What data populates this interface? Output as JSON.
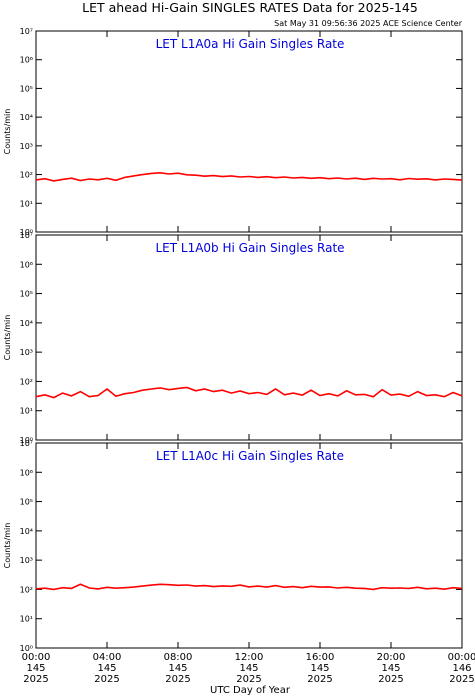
{
  "title": "LET ahead Hi-Gain SINGLES RATES Data for 2025-145",
  "timestamp": "Sat May 31 09:56:36 2025 ACE Science Center",
  "xlabel": "UTC Day of Year",
  "xlim": [
    0,
    24
  ],
  "xticks": [
    {
      "value": 0,
      "label": "00:00\n145\n2025"
    },
    {
      "value": 4,
      "label": "04:00\n145\n2025"
    },
    {
      "value": 8,
      "label": "08:00\n145\n2025"
    },
    {
      "value": 12,
      "label": "12:00\n145\n2025"
    },
    {
      "value": 16,
      "label": "16:00\n145\n2025"
    },
    {
      "value": 20,
      "label": "20:00\n145\n2025"
    },
    {
      "value": 24,
      "label": "00:00\n146\n2025"
    }
  ],
  "chart_data": [
    {
      "type": "line",
      "title": "LET L1A0a Hi Gain Singles Rate",
      "ylabel": "Counts/min",
      "log_y": true,
      "ylim": [
        1,
        10000000
      ],
      "yticks": [
        {
          "value": 1,
          "label": "10⁰"
        },
        {
          "value": 10,
          "label": "10¹"
        },
        {
          "value": 100,
          "label": "10²"
        },
        {
          "value": 1000,
          "label": "10³"
        },
        {
          "value": 10000,
          "label": "10⁴"
        },
        {
          "value": 100000,
          "label": "10⁵"
        },
        {
          "value": 1000000,
          "label": "10⁶"
        },
        {
          "value": 10000000,
          "label": "10⁷"
        }
      ],
      "x": [
        0,
        0.5,
        1,
        1.5,
        2,
        2.5,
        3,
        3.5,
        4,
        4.5,
        5,
        5.5,
        6,
        6.5,
        7,
        7.5,
        8,
        8.5,
        9,
        9.5,
        10,
        10.5,
        11,
        11.5,
        12,
        12.5,
        13,
        13.5,
        14,
        14.5,
        15,
        15.5,
        16,
        16.5,
        17,
        17.5,
        18,
        18.5,
        19,
        19.5,
        20,
        20.5,
        21,
        21.5,
        22,
        22.5,
        23,
        23.5,
        24
      ],
      "series": [
        {
          "color": "#ff0000",
          "values": [
            65,
            72,
            60,
            68,
            75,
            62,
            70,
            66,
            74,
            63,
            80,
            90,
            100,
            110,
            115,
            105,
            112,
            98,
            95,
            88,
            92,
            85,
            90,
            82,
            86,
            80,
            84,
            78,
            82,
            76,
            80,
            74,
            78,
            72,
            76,
            70,
            75,
            68,
            74,
            70,
            72,
            66,
            73,
            69,
            71,
            65,
            70,
            68,
            64
          ]
        }
      ]
    },
    {
      "type": "line",
      "title": "LET L1A0b Hi Gain Singles Rate",
      "ylabel": "Counts/min",
      "log_y": true,
      "ylim": [
        1,
        10000000
      ],
      "yticks": [
        {
          "value": 1,
          "label": "10⁰"
        },
        {
          "value": 10,
          "label": "10¹"
        },
        {
          "value": 100,
          "label": "10²"
        },
        {
          "value": 1000,
          "label": "10³"
        },
        {
          "value": 10000,
          "label": "10⁴"
        },
        {
          "value": 100000,
          "label": "10⁵"
        },
        {
          "value": 1000000,
          "label": "10⁶"
        },
        {
          "value": 10000000,
          "label": "10⁷"
        }
      ],
      "x": [
        0,
        0.5,
        1,
        1.5,
        2,
        2.5,
        3,
        3.5,
        4,
        4.5,
        5,
        5.5,
        6,
        6.5,
        7,
        7.5,
        8,
        8.5,
        9,
        9.5,
        10,
        10.5,
        11,
        11.5,
        12,
        12.5,
        13,
        13.5,
        14,
        14.5,
        15,
        15.5,
        16,
        16.5,
        17,
        17.5,
        18,
        18.5,
        19,
        19.5,
        20,
        20.5,
        21,
        21.5,
        22,
        22.5,
        23,
        23.5,
        24
      ],
      "series": [
        {
          "color": "#ff0000",
          "values": [
            30,
            35,
            28,
            40,
            32,
            45,
            30,
            33,
            55,
            31,
            38,
            42,
            50,
            55,
            60,
            52,
            58,
            62,
            48,
            55,
            45,
            50,
            40,
            47,
            38,
            42,
            36,
            55,
            35,
            40,
            34,
            50,
            33,
            38,
            32,
            48,
            35,
            36,
            30,
            52,
            34,
            37,
            31,
            45,
            33,
            35,
            30,
            42,
            32
          ]
        }
      ]
    },
    {
      "type": "line",
      "title": "LET L1A0c Hi Gain Singles Rate",
      "ylabel": "Counts/min",
      "log_y": true,
      "ylim": [
        1,
        10000000
      ],
      "yticks": [
        {
          "value": 1,
          "label": "10⁰"
        },
        {
          "value": 10,
          "label": "10¹"
        },
        {
          "value": 100,
          "label": "10²"
        },
        {
          "value": 1000,
          "label": "10³"
        },
        {
          "value": 10000,
          "label": "10⁴"
        },
        {
          "value": 100000,
          "label": "10⁵"
        },
        {
          "value": 1000000,
          "label": "10⁶"
        },
        {
          "value": 10000000,
          "label": "10⁷"
        }
      ],
      "x": [
        0,
        0.5,
        1,
        1.5,
        2,
        2.5,
        3,
        3.5,
        4,
        4.5,
        5,
        5.5,
        6,
        6.5,
        7,
        7.5,
        8,
        8.5,
        9,
        9.5,
        10,
        10.5,
        11,
        11.5,
        12,
        12.5,
        13,
        13.5,
        14,
        14.5,
        15,
        15.5,
        16,
        16.5,
        17,
        17.5,
        18,
        18.5,
        19,
        19.5,
        20,
        20.5,
        21,
        21.5,
        22,
        22.5,
        23,
        23.5,
        24
      ],
      "series": [
        {
          "color": "#ff0000",
          "values": [
            105,
            110,
            100,
            115,
            108,
            150,
            112,
            104,
            118,
            110,
            115,
            120,
            130,
            140,
            150,
            145,
            138,
            142,
            130,
            135,
            125,
            132,
            128,
            140,
            122,
            130,
            120,
            135,
            118,
            125,
            115,
            128,
            120,
            122,
            112,
            118,
            110,
            108,
            100,
            115,
            110,
            112,
            108,
            118,
            105,
            110,
            102,
            115,
            108
          ]
        }
      ]
    }
  ]
}
